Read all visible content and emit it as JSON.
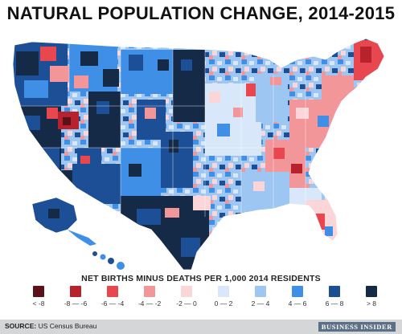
{
  "title": "NATURAL POPULATION CHANGE, 2014-2015",
  "legend": {
    "title": "NET BIRTHS MINUS DEATHS PER 1,000 2014 RESIDENTS",
    "items": [
      {
        "label": "< -8",
        "color": "#5c1018"
      },
      {
        "label": "-8 — -6",
        "color": "#b8222c"
      },
      {
        "label": "-6 — -4",
        "color": "#e8474f"
      },
      {
        "label": "-4 — -2",
        "color": "#f2969a"
      },
      {
        "label": "-2 — 0",
        "color": "#fbd6d8"
      },
      {
        "label": "0 — 2",
        "color": "#d8e8fa"
      },
      {
        "label": "2 — 4",
        "color": "#9ec6f2"
      },
      {
        "label": "4 — 6",
        "color": "#3f8fe6"
      },
      {
        "label": "6 — 8",
        "color": "#1c4f96"
      },
      {
        "label": "> 8",
        "color": "#152a47"
      }
    ]
  },
  "source_label": "SOURCE:",
  "source_text": "US Census Bureau",
  "brand": "BUSINESS INSIDER"
}
